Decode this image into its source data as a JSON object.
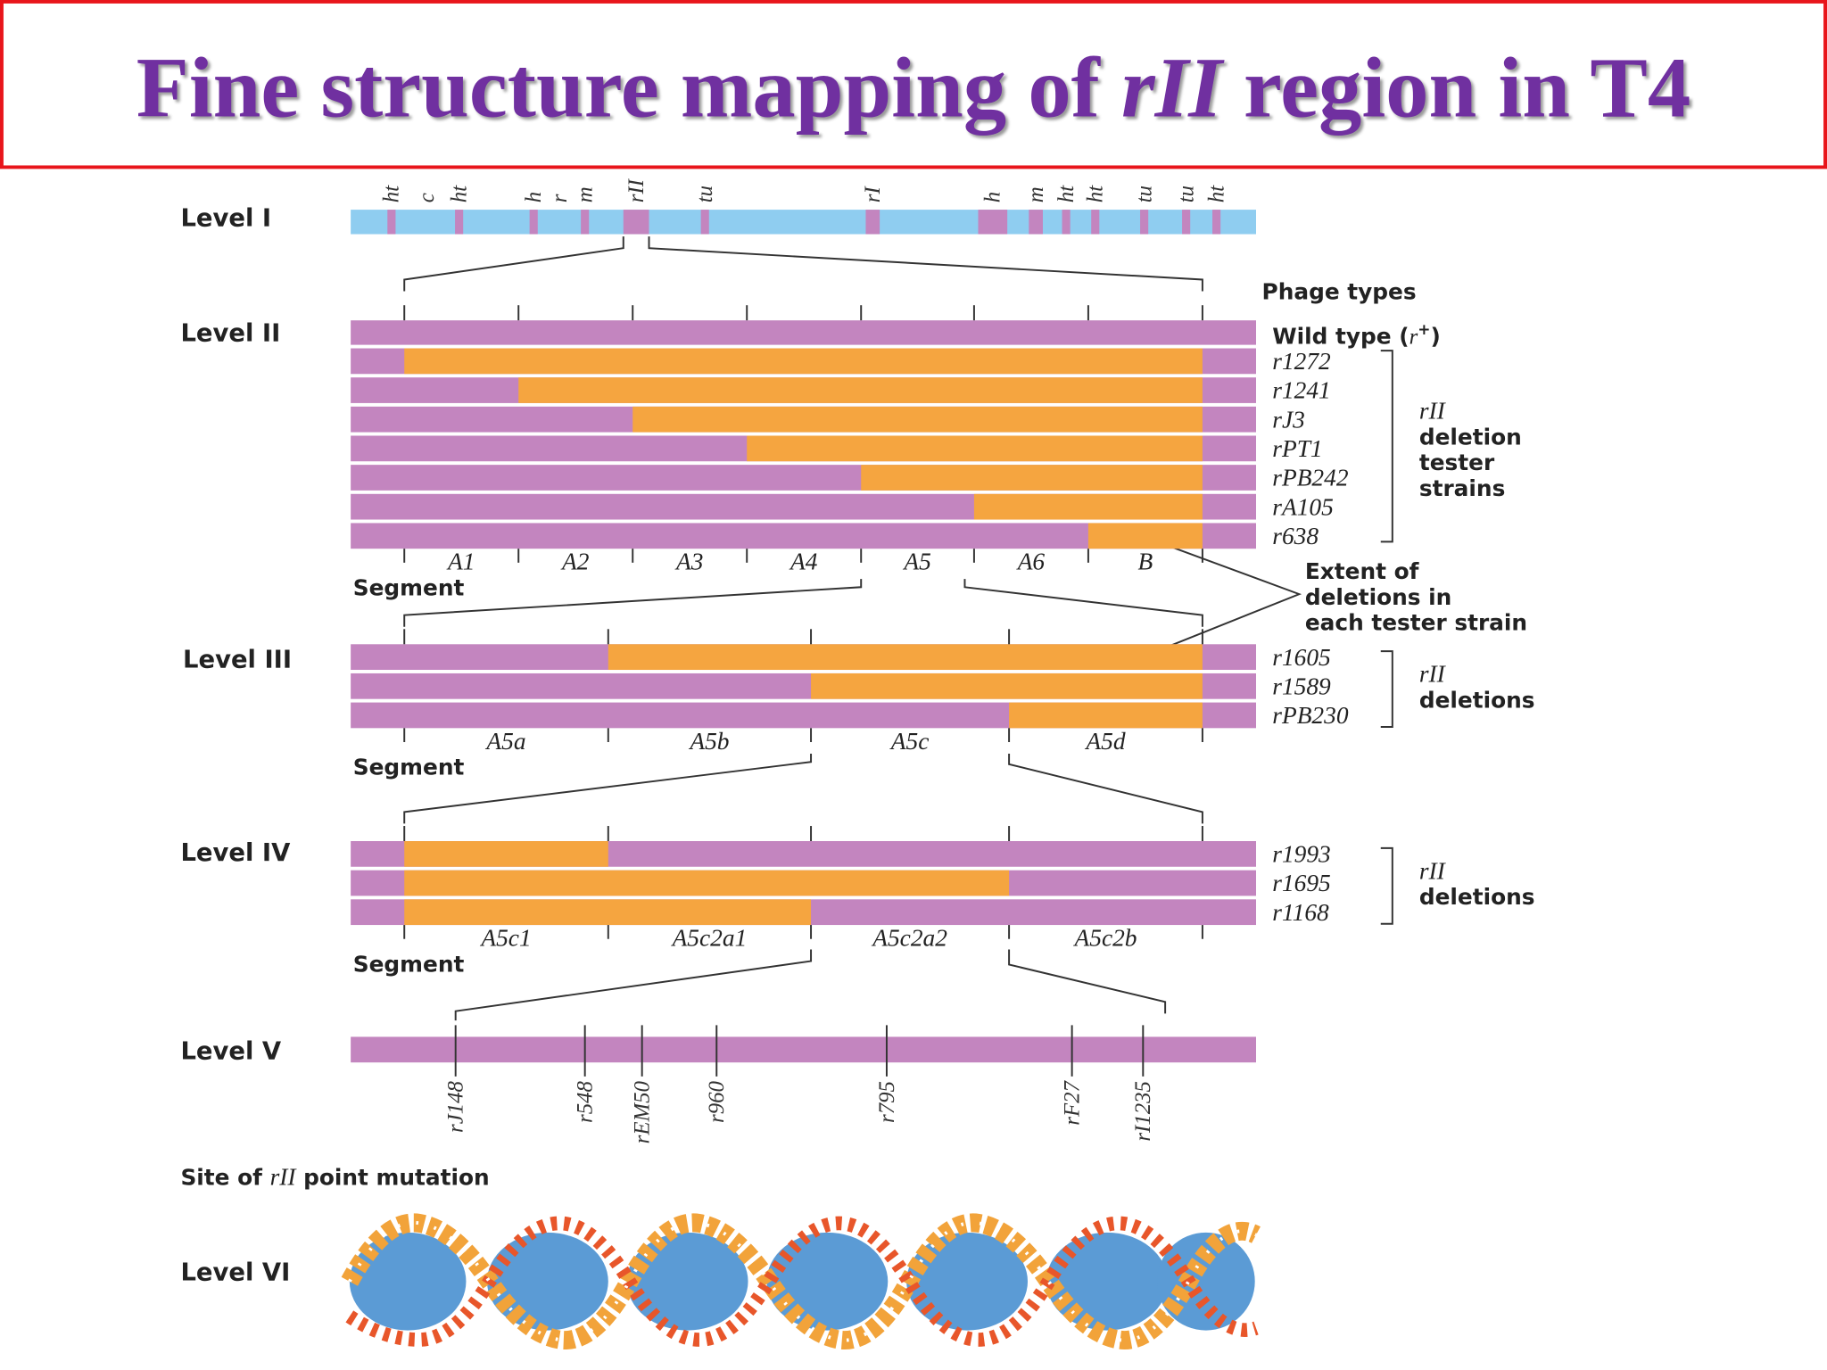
{
  "title": {
    "pre": "Fine structure mapping of ",
    "italic": "rII",
    "post": " region in T4"
  },
  "level1": {
    "label": "Level I",
    "genes": [
      "ht",
      "c",
      "ht",
      "h",
      "r",
      "m",
      "rII",
      "tu",
      "rI",
      "h",
      "m",
      "ht",
      "ht",
      "tu",
      "tu",
      "ht"
    ]
  },
  "phage_types": "Phage types",
  "level2": {
    "label": "Level II",
    "wild_type": [
      "Wild type (",
      "r",
      "+",
      ")"
    ],
    "strains": [
      "r1272",
      "r1241",
      "rJ3",
      "rPT1",
      "rPB242",
      "rA105",
      "r638"
    ],
    "bracket": [
      "rII",
      "deletion",
      "tester",
      "strains"
    ],
    "segments": [
      "A1",
      "A2",
      "A3",
      "A4",
      "A5",
      "A6",
      "B"
    ],
    "segment_label": "Segment"
  },
  "extent_note": [
    "Extent of",
    "deletions in",
    "each tester strain"
  ],
  "level3": {
    "label": "Level III",
    "strains": [
      "r1605",
      "r1589",
      "rPB230"
    ],
    "bracket": [
      "rII",
      "deletions"
    ],
    "segments": [
      "A5a",
      "A5b",
      "A5c",
      "A5d"
    ],
    "segment_label": "Segment"
  },
  "level4": {
    "label": "Level IV",
    "strains": [
      "r1993",
      "r1695",
      "r1168"
    ],
    "bracket": [
      "rII",
      "deletions"
    ],
    "segments": [
      "A5c1",
      "A5c2a1",
      "A5c2a2",
      "A5c2b"
    ],
    "segment_label": "Segment"
  },
  "level5": {
    "label": "Level V",
    "mutations": [
      "rJ148",
      "r548",
      "rEM50",
      "r960",
      "r795",
      "rF27",
      "rI1235"
    ]
  },
  "site_caption": {
    "pre": "Site of ",
    "italic": "rII",
    "post": " point mutation"
  },
  "level6": {
    "label": "Level VI"
  }
}
